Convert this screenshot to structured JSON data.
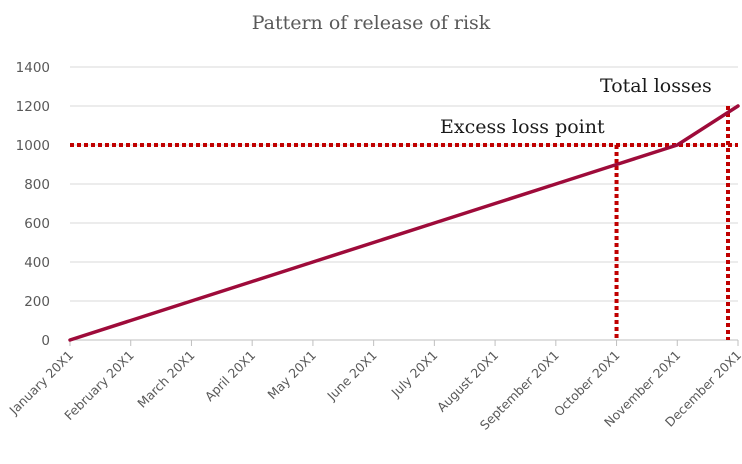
{
  "chart_data": {
    "type": "line",
    "title": "Pattern of release of risk",
    "categories": [
      "January 20X1",
      "February 20X1",
      "March 20X1",
      "April 20X1",
      "May 20X1",
      "June 20X1",
      "July 20X1",
      "August 20X1",
      "September 20X1",
      "October 20X1",
      "November 20X1",
      "December 20X1"
    ],
    "series": [
      {
        "values": [
          0,
          100,
          200,
          300,
          400,
          500,
          600,
          700,
          800,
          900,
          1000,
          1200
        ],
        "color": "#9e0b3a"
      }
    ],
    "yticks": [
      0,
      200,
      400,
      600,
      800,
      1000,
      1200,
      1400
    ],
    "ylim": [
      0,
      1400
    ],
    "grid": true,
    "reference_line": {
      "label": "Excess loss point",
      "y": 1000,
      "x_category": "October 20X1",
      "color": "#c00000"
    },
    "total_line": {
      "label": "Total losses",
      "y": 1200,
      "x_category": "December 20X1",
      "color": "#c00000"
    }
  }
}
